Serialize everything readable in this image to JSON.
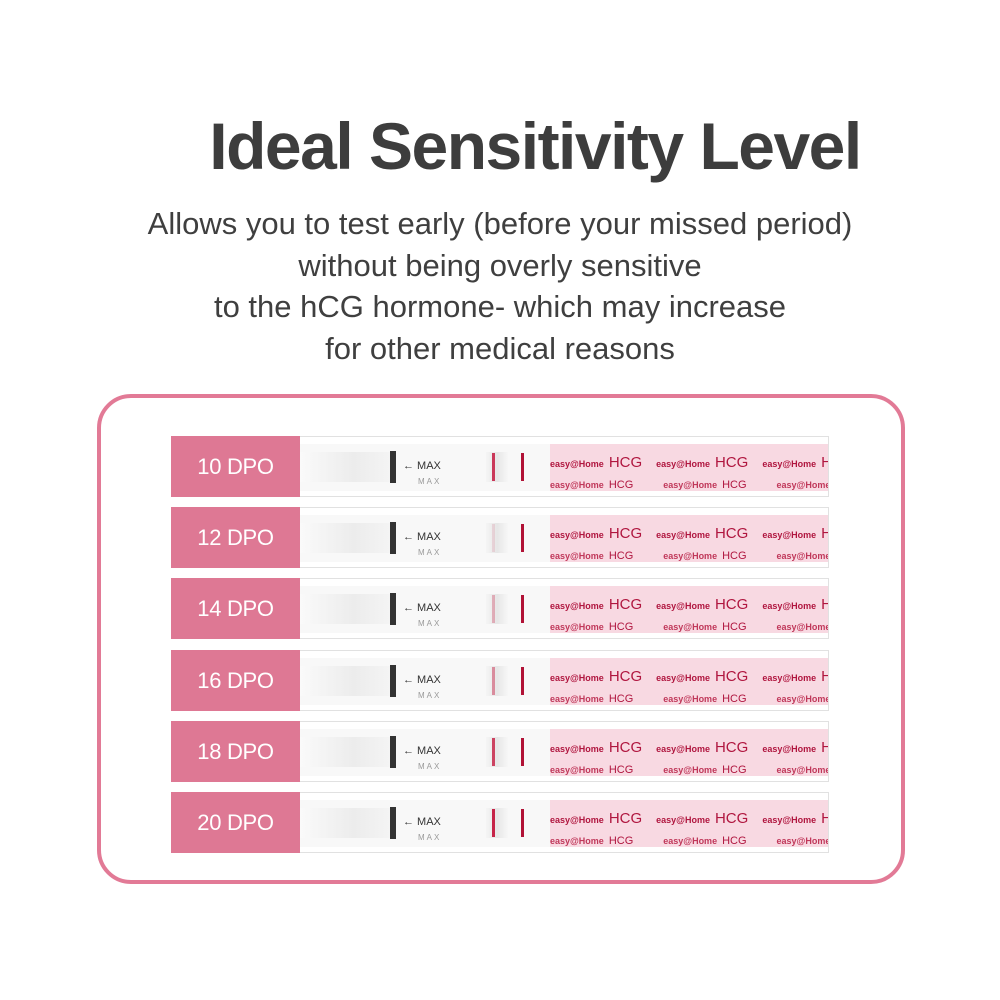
{
  "title": "Ideal Sensitivity Level",
  "subtitle": {
    "line1": "Allows you to test early (before your missed period)",
    "line2": "without being overly sensitive",
    "line3": "to the hCG hormone- which may increase",
    "line4": "for other medical reasons"
  },
  "strip": {
    "max_label": "← MAX",
    "max_sub": "MAX",
    "brand_text": "easy@Home",
    "hcg_text": "HCG"
  },
  "rows": [
    {
      "label": "10 DPO",
      "test_line_intensity": 0.85
    },
    {
      "label": "12 DPO",
      "test_line_intensity": 0.12
    },
    {
      "label": "14 DPO",
      "test_line_intensity": 0.3
    },
    {
      "label": "16 DPO",
      "test_line_intensity": 0.45
    },
    {
      "label": "18 DPO",
      "test_line_intensity": 0.8
    },
    {
      "label": "20 DPO",
      "test_line_intensity": 0.95
    }
  ],
  "colors": {
    "accent": "#de7894",
    "frame": "#e27a96",
    "line": "#c4193f"
  }
}
